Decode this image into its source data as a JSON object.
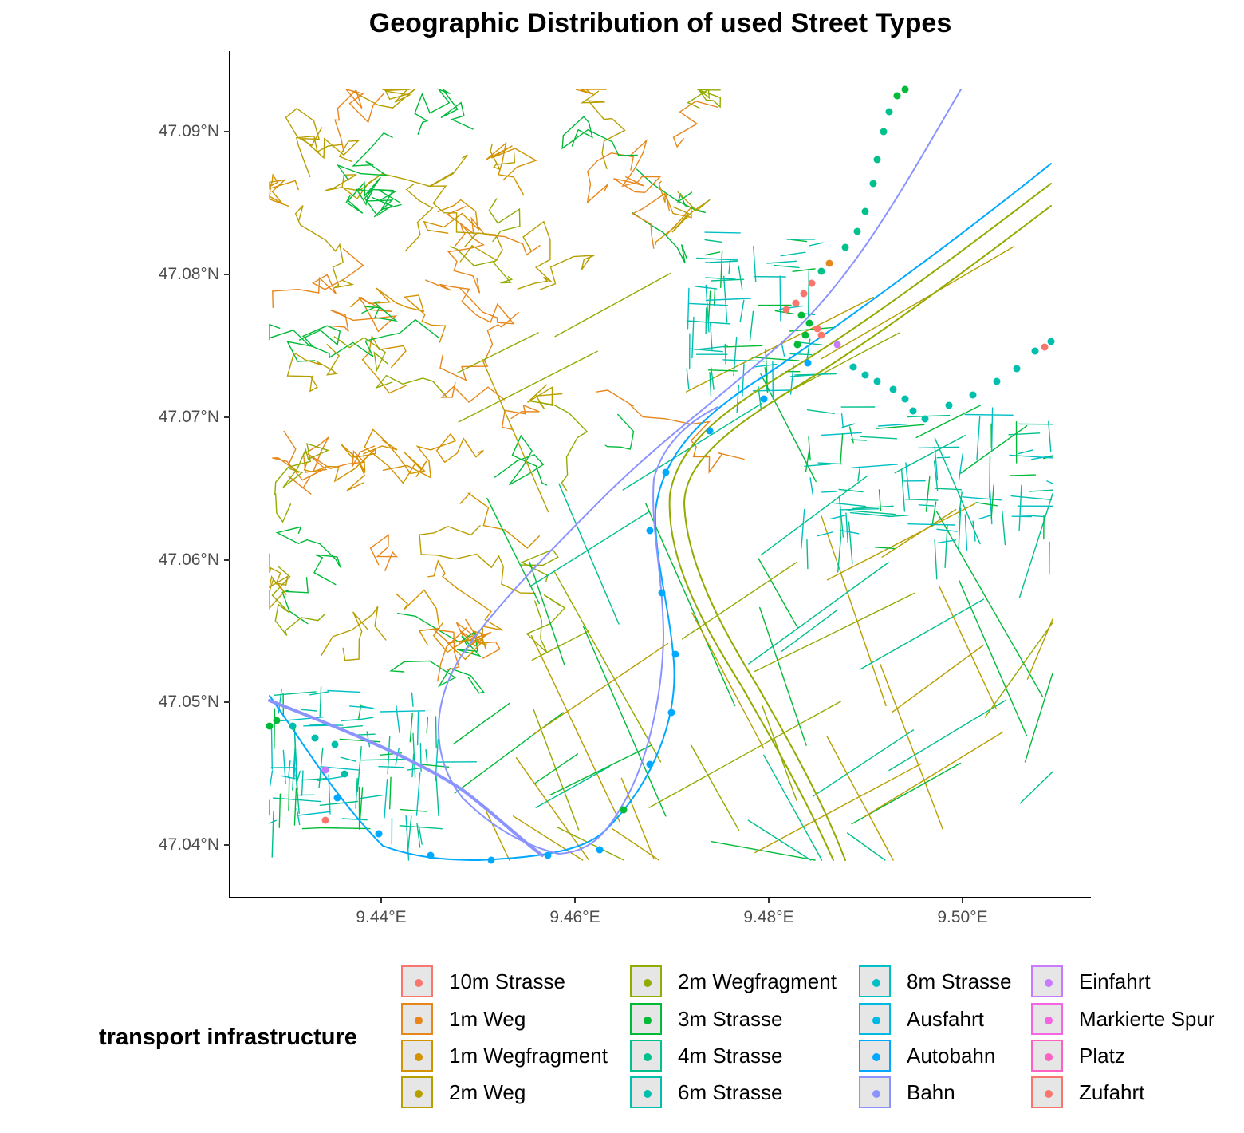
{
  "title": "Geographic Distribution of used Street Types",
  "y_ticks": [
    "47.09°N",
    "47.08°N",
    "47.07°N",
    "47.06°N",
    "47.05°N",
    "47.04°N"
  ],
  "x_ticks": [
    "9.44°E",
    "9.46°E",
    "9.48°E",
    "9.50°E"
  ],
  "legend": {
    "title": "transport infrastructure",
    "items": [
      {
        "label": "10m Strasse",
        "color": "#F8766D"
      },
      {
        "label": "1m Weg",
        "color": "#E7861B"
      },
      {
        "label": "1m Wegfragment",
        "color": "#D39200"
      },
      {
        "label": "2m Weg",
        "color": "#B79F00"
      },
      {
        "label": "2m Wegfragment",
        "color": "#93AA00"
      },
      {
        "label": "3m Strasse",
        "color": "#00BA38"
      },
      {
        "label": "4m Strasse",
        "color": "#00C08B"
      },
      {
        "label": "6m Strasse",
        "color": "#00BFAD"
      },
      {
        "label": "8m Strasse",
        "color": "#00BFC4"
      },
      {
        "label": "Ausfahrt",
        "color": "#00B9E3"
      },
      {
        "label": "Autobahn",
        "color": "#00A9FF"
      },
      {
        "label": "Bahn",
        "color": "#8B93FF"
      },
      {
        "label": "Einfahrt",
        "color": "#C77CFF"
      },
      {
        "label": "Markierte Spur",
        "color": "#F564E3"
      },
      {
        "label": "Platz",
        "color": "#FF61C3"
      },
      {
        "label": "Zufahrt",
        "color": "#F8766D"
      }
    ]
  }
}
